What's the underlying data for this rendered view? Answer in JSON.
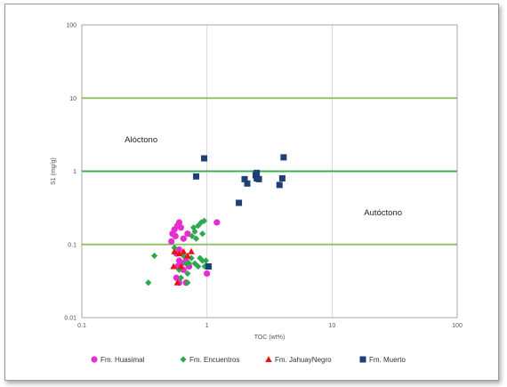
{
  "chart_data": {
    "type": "scatter",
    "xlabel": "TOC (wt%)",
    "ylabel": "S1 (mg/g)",
    "x_scale": "log",
    "y_scale": "log",
    "xlim": [
      0.1,
      100
    ],
    "ylim": [
      0.01,
      100
    ],
    "x_ticks": [
      "0.1",
      "1",
      "10",
      "100"
    ],
    "y_ticks": [
      "0.01",
      "0.1",
      "1",
      "10",
      "100"
    ],
    "grid": true,
    "legend_position": "bottom",
    "reference_lines": [
      {
        "y": 10,
        "color": "#92c36b"
      },
      {
        "y": 1,
        "color": "#3eaf4d"
      },
      {
        "y": 0.1,
        "color": "#92c36b"
      }
    ],
    "annotations": [
      {
        "text": "Alóctono",
        "x": 0.22,
        "y": 2.5
      },
      {
        "text": "Autóctono",
        "x": 18,
        "y": 0.25
      }
    ],
    "series": [
      {
        "name": "Fm. Huasimal",
        "marker": "circle",
        "color": "#e62ecf",
        "points": [
          [
            0.6,
            0.2
          ],
          [
            0.58,
            0.18
          ],
          [
            0.55,
            0.16
          ],
          [
            0.62,
            0.17
          ],
          [
            0.7,
            0.14
          ],
          [
            0.53,
            0.14
          ],
          [
            0.56,
            0.13
          ],
          [
            0.52,
            0.11
          ],
          [
            1.2,
            0.2
          ],
          [
            0.65,
            0.12
          ],
          [
            0.6,
            0.085
          ],
          [
            0.57,
            0.075
          ],
          [
            0.6,
            0.06
          ],
          [
            0.68,
            0.06
          ],
          [
            0.63,
            0.055
          ],
          [
            0.72,
            0.05
          ],
          [
            0.58,
            0.05
          ],
          [
            0.65,
            0.045
          ],
          [
            0.57,
            0.035
          ],
          [
            0.6,
            0.03
          ],
          [
            0.68,
            0.03
          ],
          [
            1.0,
            0.04
          ]
        ]
      },
      {
        "name": "Fm. Encuentros",
        "marker": "diamond",
        "color": "#2ea84c",
        "points": [
          [
            0.95,
            0.21
          ],
          [
            0.9,
            0.2
          ],
          [
            0.85,
            0.18
          ],
          [
            0.78,
            0.17
          ],
          [
            0.8,
            0.15
          ],
          [
            0.92,
            0.14
          ],
          [
            0.76,
            0.13
          ],
          [
            0.82,
            0.12
          ],
          [
            0.55,
            0.09
          ],
          [
            0.38,
            0.07
          ],
          [
            0.65,
            0.07
          ],
          [
            0.75,
            0.065
          ],
          [
            0.88,
            0.065
          ],
          [
            0.68,
            0.055
          ],
          [
            0.72,
            0.055
          ],
          [
            0.8,
            0.055
          ],
          [
            0.92,
            0.06
          ],
          [
            0.98,
            0.06
          ],
          [
            0.85,
            0.05
          ],
          [
            0.96,
            0.05
          ],
          [
            1.0,
            0.05
          ],
          [
            0.6,
            0.045
          ],
          [
            0.7,
            0.04
          ],
          [
            0.62,
            0.035
          ],
          [
            0.34,
            0.03
          ],
          [
            0.7,
            0.03
          ]
        ]
      },
      {
        "name": "Fm. JahuayNegro",
        "marker": "triangle",
        "color": "#e8140f",
        "points": [
          [
            0.55,
            0.08
          ],
          [
            0.65,
            0.08
          ],
          [
            0.75,
            0.08
          ],
          [
            0.6,
            0.075
          ],
          [
            0.7,
            0.07
          ],
          [
            0.54,
            0.05
          ],
          [
            0.62,
            0.05
          ],
          [
            0.58,
            0.03
          ]
        ]
      },
      {
        "name": "Fm. Muerto",
        "marker": "square",
        "color": "#1f3f76",
        "points": [
          [
            0.95,
            1.5
          ],
          [
            4.1,
            1.55
          ],
          [
            0.82,
            0.85
          ],
          [
            2.5,
            0.95
          ],
          [
            2.45,
            0.88
          ],
          [
            2.5,
            0.8
          ],
          [
            2.6,
            0.78
          ],
          [
            2.0,
            0.78
          ],
          [
            4.0,
            0.8
          ],
          [
            2.1,
            0.68
          ],
          [
            3.8,
            0.65
          ],
          [
            1.8,
            0.37
          ],
          [
            1.03,
            0.05
          ]
        ]
      }
    ]
  }
}
